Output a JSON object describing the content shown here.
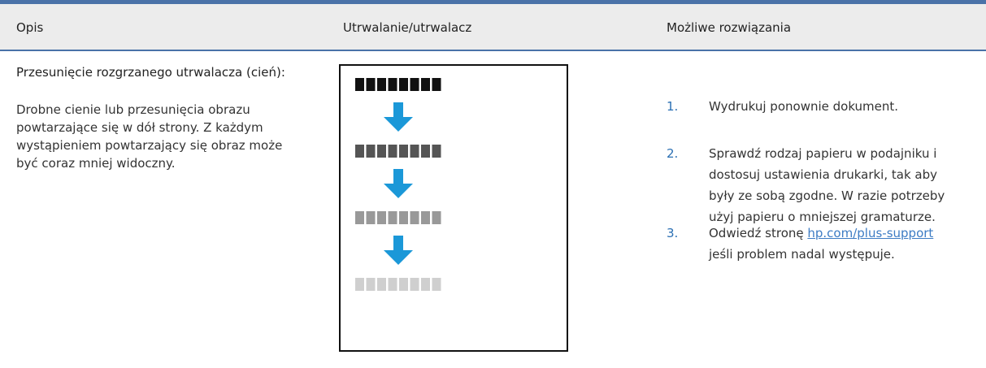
{
  "table": {
    "headers": [
      "Opis",
      "Utrwalanie/utrwalacz",
      "Możliwe rozwiązania"
    ],
    "rows": [
      {
        "title": "Przesunięcie rozgrzanego utrwalacza (cień):",
        "description": "Drobne cienie lub przesunięcia obrazu powtarzające się w dół strony. Z każdym wystąpieniem powtarzający się obraz może być coraz mniej widoczny.",
        "steps": [
          {
            "number": "1.",
            "text": "Wydrukuj ponownie dokument."
          },
          {
            "number": "2.",
            "text": "Sprawdź rodzaj papieru w podajniku i dostosuj ustawienia drukarki, tak aby były ze sobą zgodne. W razie potrzeby użyj papieru o mniejszej gramaturze."
          },
          {
            "number": "3.",
            "before": "Odwiedź stronę",
            "link": "hp.com/plus-support",
            "after": "jeśli problem nadal występuje."
          }
        ]
      }
    ]
  }
}
